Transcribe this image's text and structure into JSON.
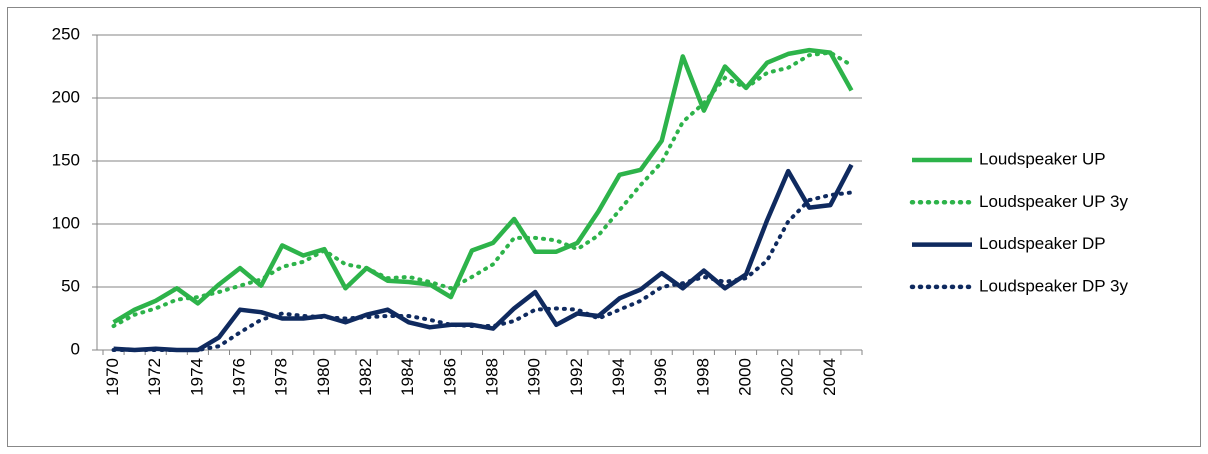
{
  "chart_data": {
    "type": "line",
    "categories": [
      "1970",
      null,
      "1972",
      null,
      "1974",
      null,
      "1976",
      null,
      "1978",
      null,
      "1980",
      null,
      "1982",
      null,
      "1984",
      null,
      "1986",
      null,
      "1988",
      null,
      "1990",
      null,
      "1992",
      null,
      "1994",
      null,
      "1996",
      null,
      "1998",
      null,
      "2000",
      null,
      "2002",
      null,
      "2004",
      null
    ],
    "series": [
      {
        "name": "Loudspeaker UP",
        "color": "#2db34a",
        "dash": "solid",
        "values": [
          22,
          32,
          39,
          49,
          37,
          52,
          65,
          51,
          83,
          75,
          80,
          49,
          65,
          55,
          54,
          52,
          42,
          79,
          85,
          104,
          78,
          78,
          85,
          110,
          139,
          143,
          166,
          233,
          190,
          225,
          208,
          228,
          235,
          238,
          236,
          206
        ]
      },
      {
        "name": "Loudspeaker UP 3y",
        "color": "#2db34a",
        "dash": "dotted",
        "values": [
          19,
          28,
          33,
          40,
          42,
          46,
          51,
          56,
          66,
          70,
          79,
          68,
          65,
          57,
          58,
          54,
          49,
          58,
          68,
          89,
          89,
          87,
          80,
          91,
          111,
          131,
          149,
          181,
          196,
          216,
          208,
          220,
          224,
          234,
          236,
          226
        ]
      },
      {
        "name": "Loudspeaker DP",
        "color": "#0f2a5f",
        "dash": "solid",
        "values": [
          1,
          0,
          1,
          0,
          0,
          10,
          32,
          30,
          25,
          25,
          27,
          22,
          28,
          32,
          22,
          18,
          20,
          20,
          17,
          33,
          46,
          20,
          29,
          27,
          41,
          48,
          61,
          49,
          63,
          49,
          60,
          103,
          142,
          113,
          115,
          147
        ]
      },
      {
        "name": "Loudspeaker DP 3y",
        "color": "#0f2a5f",
        "dash": "dotted",
        "values": [
          0,
          0,
          0,
          0,
          0,
          3,
          14,
          24,
          29,
          27,
          26,
          25,
          26,
          27,
          27,
          24,
          20,
          19,
          19,
          23,
          32,
          33,
          32,
          25,
          32,
          39,
          50,
          53,
          58,
          54,
          57,
          71,
          102,
          119,
          123,
          125
        ]
      }
    ],
    "ylim": [
      0,
      250
    ],
    "yticks": [
      0,
      50,
      100,
      150,
      200,
      250
    ],
    "grid": true,
    "legend": "right"
  }
}
